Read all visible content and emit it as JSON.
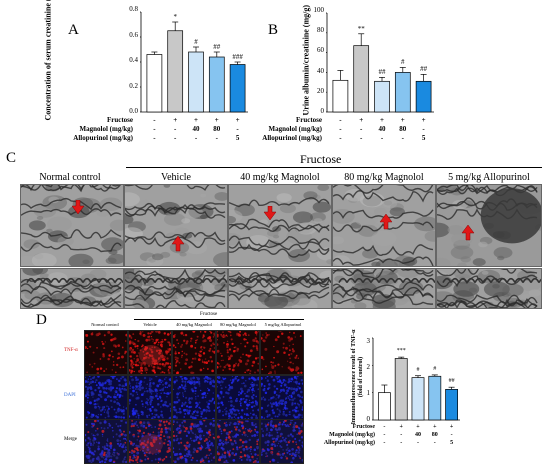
{
  "panels": {
    "a": "A",
    "b": "B",
    "c": "C",
    "d": "D"
  },
  "treatment_labels": {
    "fructose": "Fructose",
    "magnolol": "Magnolol (mg/kg)",
    "allopurinol": "Allopurinol (mg/kg)"
  },
  "treatment_cells": {
    "fructose": [
      "-",
      "+",
      "+",
      "+",
      "+"
    ],
    "magnolol": [
      "-",
      "-",
      "40",
      "80",
      "-"
    ],
    "allopurinol": [
      "-",
      "-",
      "-",
      "-",
      "5"
    ]
  },
  "colors": {
    "control": "#ffffff",
    "vehicle": "#c8c8c8",
    "mag40": "#cde4f7",
    "mag80": "#86c4f0",
    "allo": "#1a8ae0"
  },
  "chart_data": [
    {
      "type": "bar",
      "categories": [
        "Normal control",
        "Vehicle",
        "40 mg/kg Magnolol",
        "80 mg/kg Magnolol",
        "5 mg/kg Allopurinol"
      ],
      "values": [
        0.46,
        0.65,
        0.48,
        0.44,
        0.38
      ],
      "errors": [
        0.02,
        0.07,
        0.04,
        0.04,
        0.02
      ],
      "significance": [
        "",
        "*",
        "#",
        "##",
        "###"
      ],
      "ylabel": "Concentration of serum creatinine (mg/dL)",
      "ylim": [
        0.0,
        0.8
      ],
      "yticks": [
        "0.0",
        "0.2",
        "0.4",
        "0.6",
        "0.8"
      ]
    },
    {
      "type": "bar",
      "categories": [
        "Normal control",
        "Vehicle",
        "40 mg/kg Magnolol",
        "80 mg/kg Magnolol",
        "5 mg/kg Allopurinol"
      ],
      "values": [
        32,
        67,
        31,
        40,
        31
      ],
      "errors": [
        10,
        12,
        4,
        5,
        7
      ],
      "significance": [
        "",
        "**",
        "##",
        "#",
        "##"
      ],
      "ylabel": "Urine albumin/creatinine (mg/g)",
      "ylim": [
        0,
        100
      ],
      "yticks": [
        "0",
        "20",
        "40",
        "60",
        "80",
        "100"
      ]
    },
    {
      "type": "bar",
      "categories": [
        "Normal control",
        "Vehicle",
        "40 mg/kg Magnolol",
        "80 mg/kg Magnolol",
        "5 mg/kg Allopurinol"
      ],
      "values": [
        1.0,
        2.25,
        1.55,
        1.6,
        1.12
      ],
      "errors": [
        0.28,
        0.05,
        0.07,
        0.05,
        0.08
      ],
      "significance": [
        "",
        "***",
        "#",
        "#",
        "##"
      ],
      "ylabel": "Immunofluorescence result of TNF-α (fold of control)",
      "ylim": [
        0,
        3
      ],
      "yticks": [
        "0",
        "1",
        "2",
        "3"
      ]
    }
  ],
  "tem": {
    "group_header": "Fructose",
    "columns": [
      "Normal control",
      "Vehicle",
      "40 mg/kg Magnolol",
      "80 mg/kg Magnolol",
      "5 mg/kg Allopurinol"
    ]
  },
  "if_panel": {
    "group_header": "Fructose",
    "columns": [
      "Normal control",
      "Vehicle",
      "40 mg/kg Magnolol",
      "80 mg/kg Magnolol",
      "5 mg/kg Allopurinol"
    ],
    "rows": [
      "TNF-α",
      "DAPI",
      "Merge"
    ],
    "row_colors": [
      "#d22222",
      "#3a6fd8",
      "#000000"
    ]
  }
}
